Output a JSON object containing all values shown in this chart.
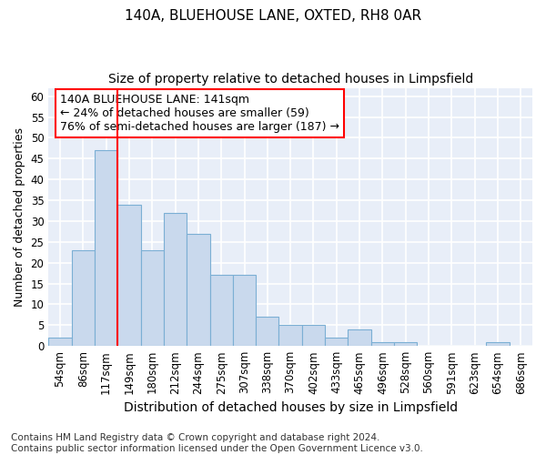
{
  "title": "140A, BLUEHOUSE LANE, OXTED, RH8 0AR",
  "subtitle": "Size of property relative to detached houses in Limpsfield",
  "xlabel": "Distribution of detached houses by size in Limpsfield",
  "ylabel": "Number of detached properties",
  "bar_labels": [
    "54sqm",
    "86sqm",
    "117sqm",
    "149sqm",
    "180sqm",
    "212sqm",
    "244sqm",
    "275sqm",
    "307sqm",
    "338sqm",
    "370sqm",
    "402sqm",
    "433sqm",
    "465sqm",
    "496sqm",
    "528sqm",
    "560sqm",
    "591sqm",
    "623sqm",
    "654sqm",
    "686sqm"
  ],
  "bar_values": [
    2,
    23,
    47,
    34,
    23,
    32,
    27,
    17,
    17,
    7,
    5,
    5,
    2,
    4,
    1,
    1,
    0,
    0,
    0,
    1,
    0
  ],
  "bar_color": "#c9d9ed",
  "bar_edgecolor": "#7bafd4",
  "vline_color": "red",
  "vline_x_index": 3,
  "annotation_text": "140A BLUEHOUSE LANE: 141sqm\n← 24% of detached houses are smaller (59)\n76% of semi-detached houses are larger (187) →",
  "annotation_box_color": "white",
  "annotation_box_edgecolor": "red",
  "ylim": [
    0,
    62
  ],
  "yticks": [
    0,
    5,
    10,
    15,
    20,
    25,
    30,
    35,
    40,
    45,
    50,
    55,
    60
  ],
  "footer": "Contains HM Land Registry data © Crown copyright and database right 2024.\nContains public sector information licensed under the Open Government Licence v3.0.",
  "plot_bg_color": "#e8eef8",
  "fig_bg_color": "#ffffff",
  "grid_color": "#ffffff",
  "title_fontsize": 11,
  "subtitle_fontsize": 10,
  "xlabel_fontsize": 10,
  "ylabel_fontsize": 9,
  "tick_fontsize": 8.5,
  "annotation_fontsize": 9,
  "footer_fontsize": 7.5
}
